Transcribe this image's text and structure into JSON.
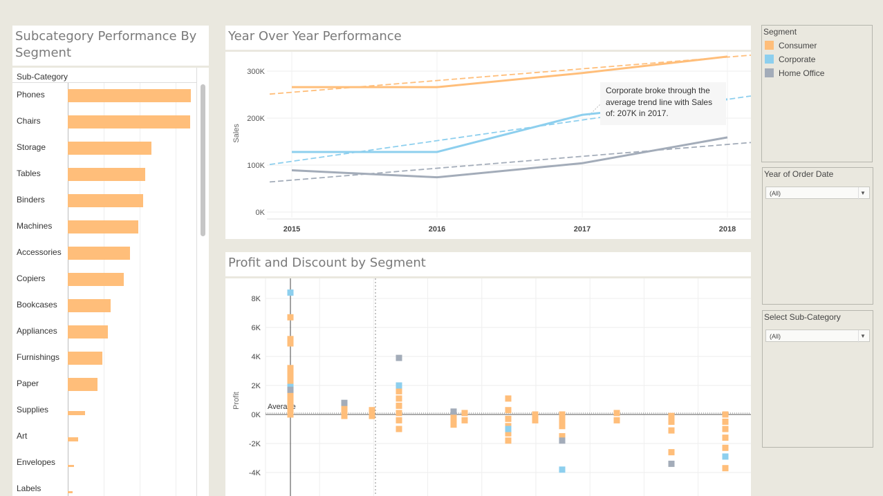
{
  "subcategory": {
    "title_line1": "Subcategory Performance By",
    "title_line2": "Segment",
    "header": "Sub-Category",
    "chart_data": {
      "type": "bar",
      "categories": [
        "Phones",
        "Chairs",
        "Storage",
        "Tables",
        "Binders",
        "Machines",
        "Accessories",
        "Copiers",
        "Bookcases",
        "Appliances",
        "Furnishings",
        "Paper",
        "Supplies",
        "Art",
        "Envelopes",
        "Labels"
      ],
      "values": [
        330000,
        328000,
        224000,
        207000,
        203000,
        189000,
        167000,
        150000,
        115000,
        108000,
        92000,
        79000,
        47000,
        27000,
        16000,
        12500
      ],
      "series": [
        {
          "name": "Consumer"
        }
      ]
    }
  },
  "yoy": {
    "title": "Year Over Year Performance",
    "annotation_line1": "Corporate broke through the",
    "annotation_line2": "average trend line with Sales",
    "annotation_line3": "of: 207K in 2017.",
    "chart_data": {
      "type": "line",
      "x": [
        "2015",
        "2016",
        "2017",
        "2018"
      ],
      "ylabel": "Sales",
      "yticks": [
        "0K",
        "100K",
        "200K",
        "300K"
      ],
      "ylim": [
        0,
        340000
      ],
      "series": [
        {
          "name": "Consumer",
          "values": [
            266000,
            266000,
            296000,
            331000
          ],
          "trend": [
            255000,
            280000,
            305000,
            330000
          ]
        },
        {
          "name": "Corporate",
          "values": [
            128000,
            128000,
            207000,
            240000
          ],
          "trend": [
            108000,
            152000,
            196000,
            240000
          ]
        },
        {
          "name": "Home Office",
          "values": [
            89000,
            74000,
            104000,
            159000
          ],
          "trend": [
            68000,
            93000,
            118000,
            144000
          ]
        }
      ],
      "colors": {
        "Consumer": "#ffbe7a",
        "Corporate": "#8dcfee",
        "Home Office": "#a3acb9"
      }
    }
  },
  "profit": {
    "title": "Profit and Discount by Segment",
    "average_label": "Average",
    "chart_data": {
      "type": "scatter",
      "ylabel": "Profit",
      "yticks": [
        "-4K",
        "-2K",
        "0K",
        "2K",
        "4K",
        "6K",
        "8K"
      ],
      "ylim": [
        -5300,
        9200
      ],
      "average": 0,
      "points": [
        {
          "col": 0,
          "y": 6700,
          "s": "Consumer"
        },
        {
          "col": 0,
          "y": 5200,
          "s": "Consumer"
        },
        {
          "col": 0,
          "y": 4900,
          "s": "Consumer"
        },
        {
          "col": 0,
          "y": 3200,
          "s": "Consumer"
        },
        {
          "col": 0,
          "y": 2800,
          "s": "Consumer"
        },
        {
          "col": 0,
          "y": 2400,
          "s": "Consumer"
        },
        {
          "col": 0,
          "y": 2100,
          "s": "Consumer"
        },
        {
          "col": 0,
          "y": 1500,
          "s": "Consumer"
        },
        {
          "col": 0,
          "y": 1100,
          "s": "Consumer"
        },
        {
          "col": 0,
          "y": 700,
          "s": "Consumer"
        },
        {
          "col": 0,
          "y": 300,
          "s": "Consumer"
        },
        {
          "col": 0,
          "y": 0,
          "s": "Consumer"
        },
        {
          "col": 0,
          "y": 8400,
          "s": "Corporate"
        },
        {
          "col": 0,
          "y": 1900,
          "s": "Corporate"
        },
        {
          "col": 0,
          "y": 1700,
          "s": "Home Office"
        },
        {
          "col": 1,
          "y": 700,
          "s": "Consumer"
        },
        {
          "col": 1,
          "y": 300,
          "s": "Consumer"
        },
        {
          "col": 1,
          "y": -100,
          "s": "Consumer"
        },
        {
          "col": 1,
          "y": 800,
          "s": "Home Office"
        },
        {
          "col": 2,
          "y": 300,
          "s": "Consumer"
        },
        {
          "col": 2,
          "y": -100,
          "s": "Consumer"
        },
        {
          "col": 3,
          "y": 1600,
          "s": "Consumer"
        },
        {
          "col": 3,
          "y": 1100,
          "s": "Consumer"
        },
        {
          "col": 3,
          "y": 600,
          "s": "Consumer"
        },
        {
          "col": 3,
          "y": 100,
          "s": "Consumer"
        },
        {
          "col": 3,
          "y": -400,
          "s": "Consumer"
        },
        {
          "col": 3,
          "y": -1000,
          "s": "Consumer"
        },
        {
          "col": 3,
          "y": 2000,
          "s": "Corporate"
        },
        {
          "col": 3,
          "y": 3900,
          "s": "Home Office"
        },
        {
          "col": 4,
          "y": 100,
          "s": "Consumer"
        },
        {
          "col": 4,
          "y": -300,
          "s": "Consumer"
        },
        {
          "col": 4,
          "y": -700,
          "s": "Consumer"
        },
        {
          "col": 4,
          "y": 200,
          "s": "Home Office"
        },
        {
          "col": 5,
          "y": 100,
          "s": "Consumer"
        },
        {
          "col": 5,
          "y": -400,
          "s": "Consumer"
        },
        {
          "col": 6,
          "y": 1100,
          "s": "Consumer"
        },
        {
          "col": 6,
          "y": 300,
          "s": "Consumer"
        },
        {
          "col": 6,
          "y": -300,
          "s": "Consumer"
        },
        {
          "col": 6,
          "y": -800,
          "s": "Consumer"
        },
        {
          "col": 6,
          "y": -1300,
          "s": "Consumer"
        },
        {
          "col": 6,
          "y": -1800,
          "s": "Consumer"
        },
        {
          "col": 6,
          "y": -1000,
          "s": "Corporate"
        },
        {
          "col": 7,
          "y": 0,
          "s": "Consumer"
        },
        {
          "col": 7,
          "y": -400,
          "s": "Consumer"
        },
        {
          "col": 8,
          "y": 0,
          "s": "Consumer"
        },
        {
          "col": 8,
          "y": -400,
          "s": "Consumer"
        },
        {
          "col": 8,
          "y": -800,
          "s": "Consumer"
        },
        {
          "col": 8,
          "y": -1500,
          "s": "Consumer"
        },
        {
          "col": 8,
          "y": -3800,
          "s": "Corporate"
        },
        {
          "col": 8,
          "y": -1800,
          "s": "Home Office"
        },
        {
          "col": 9,
          "y": 100,
          "s": "Consumer"
        },
        {
          "col": 9,
          "y": -400,
          "s": "Consumer"
        },
        {
          "col": 10,
          "y": -100,
          "s": "Consumer"
        },
        {
          "col": 10,
          "y": -500,
          "s": "Consumer"
        },
        {
          "col": 10,
          "y": -1100,
          "s": "Consumer"
        },
        {
          "col": 10,
          "y": -2600,
          "s": "Consumer"
        },
        {
          "col": 10,
          "y": -3400,
          "s": "Home Office"
        },
        {
          "col": 11,
          "y": 0,
          "s": "Consumer"
        },
        {
          "col": 11,
          "y": -500,
          "s": "Consumer"
        },
        {
          "col": 11,
          "y": -1000,
          "s": "Consumer"
        },
        {
          "col": 11,
          "y": -1600,
          "s": "Consumer"
        },
        {
          "col": 11,
          "y": -2300,
          "s": "Consumer"
        },
        {
          "col": 11,
          "y": -3700,
          "s": "Consumer"
        },
        {
          "col": 11,
          "y": -2900,
          "s": "Corporate"
        }
      ]
    }
  },
  "legend": {
    "title": "Segment",
    "items": [
      {
        "label": "Consumer",
        "color": "#ffbe7a"
      },
      {
        "label": "Corporate",
        "color": "#8dcfee"
      },
      {
        "label": "Home Office",
        "color": "#a3acb9"
      }
    ]
  },
  "filters": {
    "year": {
      "title": "Year of Order Date",
      "value": "(All)"
    },
    "subcat": {
      "title": "Select Sub-Category",
      "value": "(All)"
    }
  }
}
